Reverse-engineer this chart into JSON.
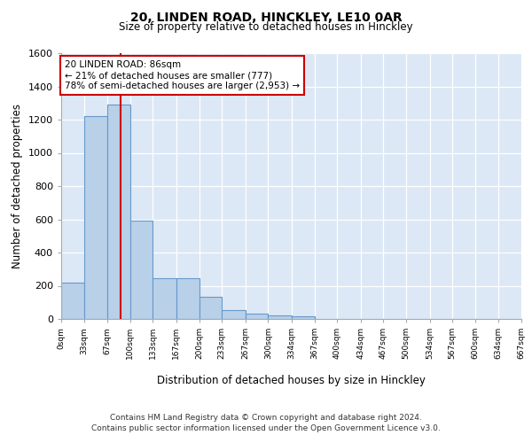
{
  "title_line1": "20, LINDEN ROAD, HINCKLEY, LE10 0AR",
  "title_line2": "Size of property relative to detached houses in Hinckley",
  "xlabel": "Distribution of detached houses by size in Hinckley",
  "ylabel": "Number of detached properties",
  "footnote1": "Contains HM Land Registry data © Crown copyright and database right 2024.",
  "footnote2": "Contains public sector information licensed under the Open Government Licence v3.0.",
  "annotation_line1": "20 LINDEN ROAD: 86sqm",
  "annotation_line2": "← 21% of detached houses are smaller (777)",
  "annotation_line3": "78% of semi-detached houses are larger (2,953) →",
  "bar_edges": [
    0,
    33,
    67,
    100,
    133,
    167,
    200,
    233,
    267,
    300,
    334,
    367,
    400,
    434,
    467,
    500,
    534,
    567,
    600,
    634,
    667
  ],
  "bar_heights": [
    220,
    1220,
    1290,
    590,
    245,
    245,
    135,
    55,
    30,
    20,
    15,
    0,
    0,
    0,
    0,
    0,
    0,
    0,
    0,
    0
  ],
  "bar_color": "#b8d0e8",
  "bar_edge_color": "#6699cc",
  "background_color": "#dce8f5",
  "grid_color": "#ffffff",
  "marker_x": 86,
  "marker_color": "#cc0000",
  "ylim": [
    0,
    1600
  ],
  "xlim": [
    0,
    667
  ],
  "yticks": [
    0,
    200,
    400,
    600,
    800,
    1000,
    1200,
    1400,
    1600
  ],
  "xtick_labels": [
    "0sqm",
    "33sqm",
    "67sqm",
    "100sqm",
    "133sqm",
    "167sqm",
    "200sqm",
    "233sqm",
    "267sqm",
    "300sqm",
    "334sqm",
    "367sqm",
    "400sqm",
    "434sqm",
    "467sqm",
    "500sqm",
    "534sqm",
    "567sqm",
    "600sqm",
    "634sqm",
    "667sqm"
  ]
}
